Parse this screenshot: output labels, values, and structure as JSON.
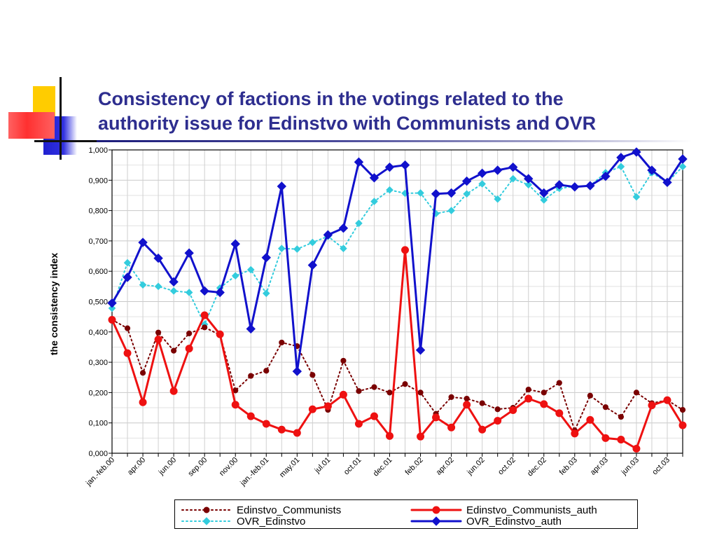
{
  "slide": {
    "title_line1": "Consistency of factions in the votings related to the",
    "title_line2": "authority issue for Edinstvo with Communists and OVR"
  },
  "chart_data": {
    "type": "line",
    "ylabel": "the consistency index",
    "xlabel": "",
    "ylim": [
      0,
      1
    ],
    "yticks": [
      "0,000",
      "0,100",
      "0,200",
      "0,300",
      "0,400",
      "0,500",
      "0,600",
      "0,700",
      "0,800",
      "0,900",
      "1,000"
    ],
    "xtick_labels": [
      "jan.-feb.00",
      "apr.00",
      "jun.00",
      "sep.00",
      "nov.00",
      "jan.-feb.01",
      "may.01",
      "jul.01",
      "oct.01",
      "dec.01",
      "feb.02",
      "apr.02",
      "jun.02",
      "oct.02",
      "dec.02",
      "feb.03",
      "apr.03",
      "jun.03",
      "oct.03"
    ],
    "grid": true,
    "legend_position": "bottom",
    "series": [
      {
        "name": "Edinstvo_Communists",
        "color": "#7a0000",
        "style": "dotted",
        "marker": "circle",
        "values": [
          0.44,
          0.412,
          0.265,
          0.398,
          0.338,
          0.395,
          0.415,
          0.39,
          0.207,
          0.255,
          0.272,
          0.365,
          0.353,
          0.258,
          0.143,
          0.305,
          0.205,
          0.218,
          0.2,
          0.228,
          0.2,
          0.13,
          0.185,
          0.18,
          0.165,
          0.145,
          0.15,
          0.21,
          0.2,
          0.232,
          0.075,
          0.19,
          0.152,
          0.12,
          0.2,
          0.165,
          0.175,
          0.143
        ]
      },
      {
        "name": "Edinstvo_Communists_auth",
        "color": "#ee1111",
        "style": "solid",
        "marker": "circle",
        "values": [
          0.44,
          0.33,
          0.168,
          0.375,
          0.205,
          0.345,
          0.455,
          0.392,
          0.16,
          0.122,
          0.097,
          0.078,
          0.067,
          0.145,
          0.155,
          0.193,
          0.097,
          0.122,
          0.057,
          0.67,
          0.055,
          0.118,
          0.085,
          0.16,
          0.078,
          0.107,
          0.142,
          0.18,
          0.162,
          0.132,
          0.065,
          0.11,
          0.05,
          0.045,
          0.015,
          0.158,
          0.175,
          0.092
        ]
      },
      {
        "name": "OVR_Edinstvo",
        "color": "#33ccdd",
        "style": "dotted",
        "marker": "diamond",
        "values": [
          0.478,
          0.628,
          0.555,
          0.55,
          0.535,
          0.53,
          0.425,
          0.545,
          0.585,
          0.605,
          0.527,
          0.675,
          0.673,
          0.695,
          0.715,
          0.675,
          0.758,
          0.83,
          0.868,
          0.857,
          0.858,
          0.79,
          0.8,
          0.855,
          0.888,
          0.838,
          0.905,
          0.885,
          0.835,
          0.873,
          0.88,
          0.882,
          0.925,
          0.945,
          0.845,
          0.925,
          0.893,
          0.945
        ]
      },
      {
        "name": "OVR_Edinstvo_auth",
        "color": "#1111cc",
        "style": "solid",
        "marker": "diamond",
        "values": [
          0.495,
          0.58,
          0.695,
          0.643,
          0.565,
          0.66,
          0.535,
          0.53,
          0.69,
          0.41,
          0.645,
          0.88,
          0.27,
          0.62,
          0.72,
          0.742,
          0.96,
          0.908,
          0.943,
          0.95,
          0.34,
          0.855,
          0.858,
          0.897,
          0.923,
          0.933,
          0.943,
          0.905,
          0.858,
          0.885,
          0.878,
          0.882,
          0.913,
          0.975,
          0.993,
          0.933,
          0.893,
          0.97
        ]
      }
    ]
  }
}
